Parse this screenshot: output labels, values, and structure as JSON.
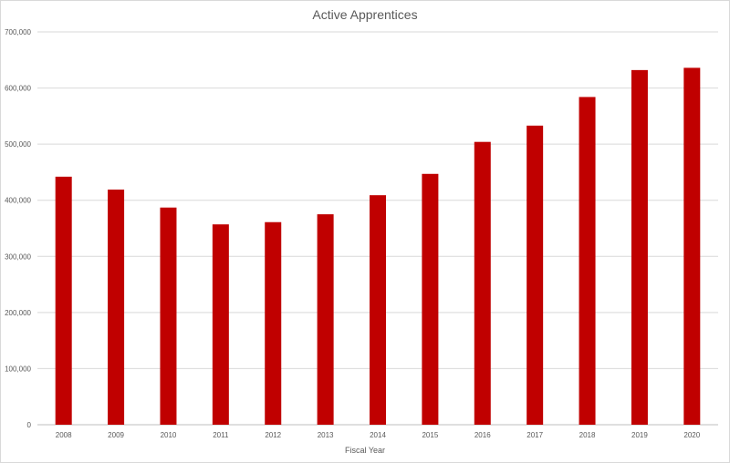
{
  "chart_data": {
    "type": "bar",
    "title": "Active Apprentices",
    "xlabel": "Fiscal Year",
    "ylabel": "",
    "categories": [
      "2008",
      "2009",
      "2010",
      "2011",
      "2012",
      "2013",
      "2014",
      "2015",
      "2016",
      "2017",
      "2018",
      "2019",
      "2020"
    ],
    "series": [
      {
        "values": [
          442000,
          419000,
          387000,
          357000,
          361000,
          375000,
          409000,
          447000,
          504000,
          533000,
          584000,
          632000,
          636000
        ],
        "color": "#c00000"
      }
    ],
    "ylim": [
      0,
      700000
    ],
    "yticks": [
      "0",
      "100,000",
      "200,000",
      "300,000",
      "400,000",
      "500,000",
      "600,000",
      "700,000"
    ],
    "grid": true,
    "legend": "none"
  }
}
